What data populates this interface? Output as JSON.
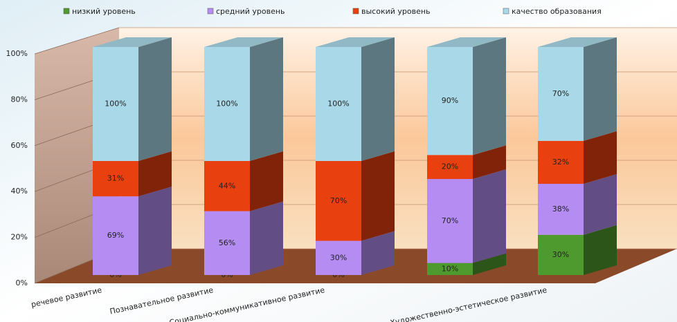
{
  "chart_data": {
    "type": "bar",
    "stacking": "percent",
    "categories": [
      "речевое развитие",
      "Познавательное развитие",
      "Социально-коммуникативное развитие",
      null,
      "Художественно-эстетическое развитие"
    ],
    "series": [
      {
        "name": "низкий уровень",
        "color": "#4f9a2e",
        "values": [
          0,
          0,
          0,
          10,
          30
        ],
        "value_labels": [
          "0%",
          "0%",
          "0%",
          "10%",
          "30%"
        ]
      },
      {
        "name": "средний уровень",
        "color": "#b48cf2",
        "values": [
          69,
          56,
          30,
          70,
          38
        ],
        "value_labels": [
          "69%",
          "56%",
          "30%",
          "70%",
          "38%"
        ]
      },
      {
        "name": "высокий уровень",
        "color": "#e8400e",
        "values": [
          31,
          44,
          70,
          20,
          32
        ],
        "value_labels": [
          "31%",
          "44%",
          "70%",
          "20%",
          "32%"
        ]
      },
      {
        "name": "качество образования",
        "color": "#a9d9e8",
        "values": [
          100,
          100,
          100,
          90,
          70
        ],
        "value_labels": [
          "100%",
          "100%",
          "100%",
          "90%",
          "70%"
        ]
      }
    ],
    "ylim": [
      0,
      100
    ],
    "yticks": [
      {
        "value": 0,
        "label": "0%"
      },
      {
        "value": 20,
        "label": "20%"
      },
      {
        "value": 40,
        "label": "40%"
      },
      {
        "value": 60,
        "label": "60%"
      },
      {
        "value": 80,
        "label": "80%"
      },
      {
        "value": 100,
        "label": "100%"
      }
    ],
    "grid": true,
    "legend": "top"
  }
}
